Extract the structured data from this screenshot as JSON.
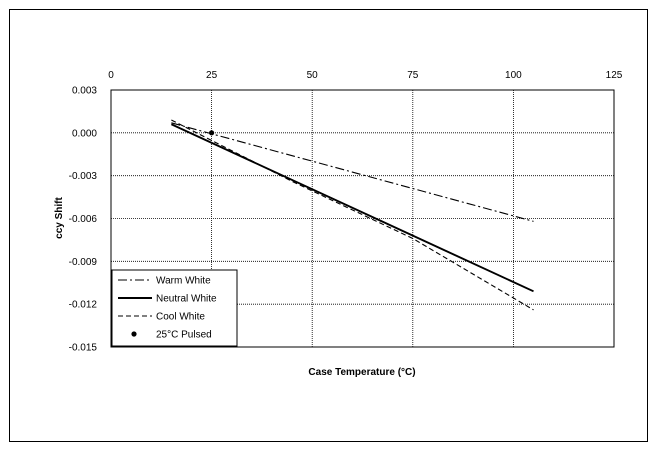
{
  "chart_data": {
    "type": "line",
    "title": "",
    "xlabel": "Case Temperature (°C)",
    "ylabel": "ccy Shift",
    "xlim": [
      0,
      125
    ],
    "ylim": [
      -0.015,
      0.003
    ],
    "x_ticks": [
      0,
      25,
      50,
      75,
      100,
      125
    ],
    "x_tick_labels": [
      "0",
      "25",
      "50",
      "75",
      "100",
      "125"
    ],
    "y_ticks": [
      0.003,
      0.0,
      -0.003,
      -0.006,
      -0.009,
      -0.012,
      -0.015
    ],
    "y_tick_labels": [
      "0.003",
      "0.000",
      "-0.003",
      "-0.006",
      "-0.009",
      "-0.012",
      "-0.015"
    ],
    "x_axis_position": "top",
    "grid": true,
    "grid_style": "dotted",
    "legend_position": "bottom-left",
    "series": [
      {
        "name": "Warm White",
        "style": "dash-dot",
        "color": "#000000",
        "x": [
          15,
          105
        ],
        "y": [
          0.0007,
          -0.0062
        ]
      },
      {
        "name": "Neutral White",
        "style": "solid",
        "color": "#000000",
        "x": [
          15,
          105
        ],
        "y": [
          0.0006,
          -0.0111
        ]
      },
      {
        "name": "Cool White",
        "style": "dashed",
        "color": "#000000",
        "x": [
          15,
          45,
          75,
          105
        ],
        "y": [
          0.0009,
          -0.0034,
          -0.0074,
          -0.0124
        ]
      },
      {
        "name": "25°C Pulsed",
        "style": "marker",
        "color": "#000000",
        "x": [
          25
        ],
        "y": [
          0.0
        ]
      }
    ]
  }
}
